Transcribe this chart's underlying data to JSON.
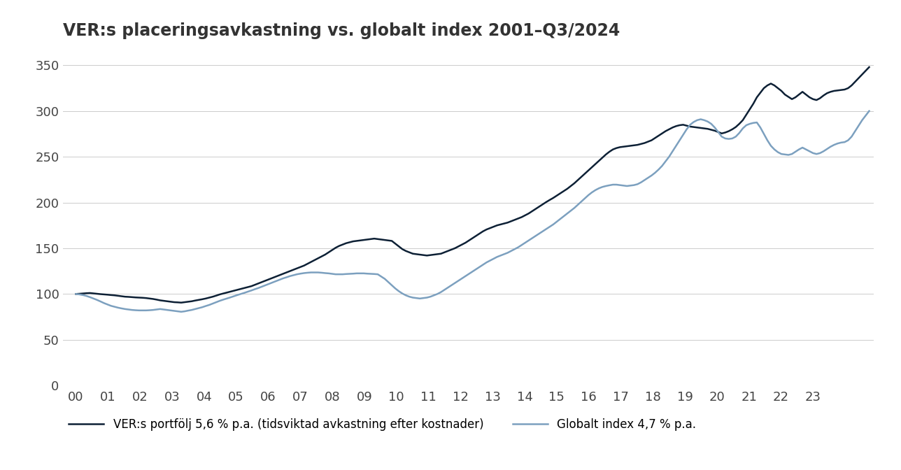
{
  "title": "VER:s placeringsavkastning vs. globalt index 2001–Q3/2024",
  "title_fontsize": 17,
  "ver_color": "#0d2035",
  "index_color": "#7ca0bf",
  "ver_label": "VER:s portfölj 5,6 % p.a. (tidsviktad avkastning efter kostnader)",
  "index_label": "Globalt index 4,7 % p.a.",
  "ylim": [
    0,
    370
  ],
  "yticks": [
    0,
    50,
    100,
    150,
    200,
    250,
    300,
    350
  ],
  "xtick_labels": [
    "00",
    "01",
    "02",
    "03",
    "04",
    "05",
    "06",
    "07",
    "08",
    "09",
    "10",
    "11",
    "12",
    "13",
    "14",
    "15",
    "16",
    "17",
    "18",
    "19",
    "20",
    "21",
    "22",
    "23"
  ],
  "background_color": "#ffffff",
  "grid_color": "#cccccc",
  "ver_data": [
    100.0,
    100.2,
    100.5,
    100.8,
    101.0,
    100.6,
    100.2,
    99.8,
    99.5,
    99.2,
    98.8,
    98.5,
    98.0,
    97.5,
    97.0,
    96.8,
    96.5,
    96.2,
    96.0,
    95.8,
    95.5,
    95.0,
    94.5,
    93.8,
    93.0,
    92.5,
    92.0,
    91.5,
    91.0,
    90.8,
    90.5,
    91.0,
    91.5,
    92.0,
    92.8,
    93.5,
    94.2,
    95.0,
    96.0,
    97.0,
    98.2,
    99.5,
    100.5,
    101.5,
    102.5,
    103.5,
    104.5,
    105.5,
    106.5,
    107.5,
    108.5,
    110.0,
    111.5,
    113.0,
    114.5,
    116.0,
    117.5,
    119.0,
    120.5,
    122.0,
    123.5,
    125.0,
    126.5,
    128.0,
    129.5,
    131.0,
    133.0,
    135.0,
    137.0,
    139.0,
    141.0,
    143.0,
    145.5,
    148.0,
    150.5,
    152.5,
    154.0,
    155.5,
    156.5,
    157.5,
    158.0,
    158.5,
    159.0,
    159.5,
    160.0,
    160.5,
    160.0,
    159.5,
    159.0,
    158.5,
    158.0,
    155.0,
    152.0,
    149.0,
    147.0,
    145.5,
    144.0,
    143.5,
    143.0,
    142.5,
    142.0,
    142.5,
    143.0,
    143.5,
    144.0,
    145.5,
    147.0,
    148.5,
    150.0,
    152.0,
    154.0,
    156.0,
    158.5,
    161.0,
    163.5,
    166.0,
    168.5,
    170.5,
    172.0,
    173.5,
    175.0,
    176.0,
    177.0,
    178.0,
    179.5,
    181.0,
    182.5,
    184.0,
    186.0,
    188.0,
    190.5,
    193.0,
    195.5,
    198.0,
    200.5,
    202.8,
    205.0,
    207.5,
    210.0,
    212.5,
    215.0,
    218.0,
    221.0,
    224.5,
    228.0,
    231.5,
    235.0,
    238.5,
    242.0,
    245.5,
    249.0,
    252.5,
    255.5,
    258.0,
    259.5,
    260.5,
    261.0,
    261.5,
    262.0,
    262.5,
    263.0,
    264.0,
    265.0,
    266.5,
    268.0,
    270.5,
    273.0,
    275.5,
    278.0,
    280.0,
    282.0,
    283.5,
    284.5,
    285.0,
    284.0,
    283.0,
    282.5,
    282.0,
    281.5,
    281.0,
    280.5,
    279.5,
    278.5,
    277.0,
    275.5,
    276.5,
    278.0,
    280.0,
    282.5,
    286.0,
    290.0,
    296.0,
    302.0,
    308.0,
    315.0,
    320.0,
    325.0,
    328.0,
    330.0,
    328.0,
    325.0,
    322.0,
    318.0,
    315.5,
    313.0,
    315.0,
    318.0,
    321.0,
    318.0,
    315.0,
    313.0,
    312.0,
    314.0,
    317.0,
    319.5,
    321.0,
    322.0,
    322.5,
    323.0,
    323.5,
    325.0,
    328.0,
    332.0,
    336.0,
    340.0,
    344.0,
    348.0
  ],
  "index_data": [
    100.0,
    99.5,
    98.8,
    97.8,
    96.5,
    95.0,
    93.5,
    91.8,
    90.0,
    88.5,
    87.0,
    86.0,
    85.0,
    84.2,
    83.5,
    83.0,
    82.5,
    82.2,
    82.0,
    82.0,
    82.0,
    82.2,
    82.5,
    83.0,
    83.5,
    83.0,
    82.5,
    82.0,
    81.5,
    81.0,
    80.5,
    81.0,
    81.8,
    82.5,
    83.5,
    84.5,
    85.5,
    86.8,
    88.0,
    89.5,
    91.0,
    92.5,
    93.8,
    95.0,
    96.2,
    97.5,
    98.8,
    100.0,
    101.2,
    102.5,
    103.8,
    105.2,
    106.5,
    108.0,
    109.5,
    111.0,
    112.5,
    114.0,
    115.5,
    117.0,
    118.2,
    119.5,
    120.5,
    121.5,
    122.2,
    122.8,
    123.2,
    123.5,
    123.5,
    123.5,
    123.2,
    122.8,
    122.5,
    122.0,
    121.5,
    121.5,
    121.5,
    121.8,
    122.0,
    122.2,
    122.5,
    122.5,
    122.5,
    122.2,
    122.0,
    121.8,
    121.5,
    119.0,
    116.5,
    113.0,
    109.5,
    106.0,
    103.0,
    100.5,
    98.5,
    97.0,
    96.0,
    95.5,
    95.0,
    95.5,
    96.0,
    97.0,
    98.5,
    100.0,
    102.0,
    104.5,
    107.0,
    109.5,
    112.0,
    114.5,
    117.0,
    119.5,
    122.0,
    124.5,
    127.0,
    129.5,
    132.0,
    134.5,
    136.5,
    138.5,
    140.5,
    142.0,
    143.5,
    145.0,
    147.0,
    149.0,
    151.0,
    153.5,
    156.0,
    158.5,
    161.0,
    163.5,
    166.0,
    168.5,
    171.0,
    173.5,
    176.0,
    179.0,
    182.0,
    185.0,
    188.0,
    191.0,
    194.0,
    197.5,
    201.0,
    204.5,
    208.0,
    211.0,
    213.5,
    215.5,
    217.0,
    218.0,
    218.8,
    219.5,
    219.5,
    219.0,
    218.5,
    218.0,
    218.5,
    219.0,
    220.0,
    222.0,
    224.5,
    227.0,
    229.5,
    232.5,
    236.0,
    240.0,
    245.0,
    250.0,
    256.0,
    262.0,
    268.0,
    274.0,
    280.0,
    285.0,
    288.0,
    290.0,
    291.0,
    290.0,
    288.5,
    286.0,
    282.0,
    277.0,
    272.0,
    270.0,
    269.5,
    270.0,
    272.0,
    276.0,
    281.0,
    284.5,
    286.0,
    287.0,
    287.5,
    282.0,
    275.0,
    268.0,
    262.0,
    258.0,
    255.0,
    253.0,
    252.5,
    252.0,
    253.0,
    255.5,
    258.0,
    260.0,
    258.0,
    256.0,
    254.0,
    253.0,
    254.0,
    256.0,
    258.5,
    261.0,
    263.0,
    264.5,
    265.5,
    266.0,
    268.0,
    272.0,
    278.0,
    284.0,
    290.0,
    295.0,
    300.0
  ]
}
